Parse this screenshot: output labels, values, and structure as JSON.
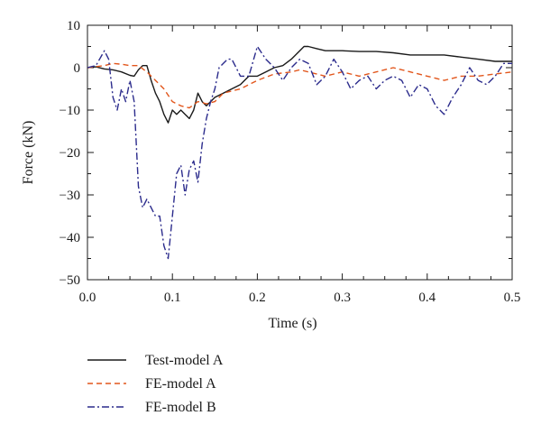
{
  "chart_data": {
    "type": "line",
    "xlabel": "Time (s)",
    "ylabel": "Force (kN)",
    "xlim": [
      0,
      0.5
    ],
    "ylim": [
      -50,
      10
    ],
    "xticks": [
      0.0,
      0.1,
      0.2,
      0.3,
      0.4,
      0.5
    ],
    "yticks": [
      10,
      0,
      -10,
      -20,
      -30,
      -40,
      -50
    ],
    "xtick_labels": [
      "0.0",
      "0.1",
      "0.2",
      "0.3",
      "0.4",
      "0.5"
    ],
    "ytick_labels": [
      "10",
      "0",
      "−10",
      "−20",
      "−30",
      "−40",
      "−50"
    ],
    "grid": false,
    "legend_position": "bottom-left, below plot",
    "series": [
      {
        "name": "Test-model A",
        "color": "#1a1a1a",
        "dash": "solid",
        "points": [
          [
            0,
            0
          ],
          [
            0.01,
            0.2
          ],
          [
            0.02,
            -0.3
          ],
          [
            0.03,
            -0.5
          ],
          [
            0.04,
            -1
          ],
          [
            0.05,
            -1.8
          ],
          [
            0.055,
            -2
          ],
          [
            0.06,
            -0.5
          ],
          [
            0.065,
            0.5
          ],
          [
            0.07,
            0.5
          ],
          [
            0.075,
            -3
          ],
          [
            0.08,
            -6
          ],
          [
            0.085,
            -8
          ],
          [
            0.09,
            -11
          ],
          [
            0.095,
            -13
          ],
          [
            0.1,
            -10
          ],
          [
            0.105,
            -11
          ],
          [
            0.11,
            -10
          ],
          [
            0.115,
            -11
          ],
          [
            0.12,
            -12
          ],
          [
            0.125,
            -10
          ],
          [
            0.13,
            -6
          ],
          [
            0.135,
            -8
          ],
          [
            0.14,
            -9
          ],
          [
            0.145,
            -8
          ],
          [
            0.15,
            -7
          ],
          [
            0.16,
            -6
          ],
          [
            0.17,
            -5
          ],
          [
            0.18,
            -4
          ],
          [
            0.19,
            -2
          ],
          [
            0.2,
            -2
          ],
          [
            0.21,
            -1
          ],
          [
            0.22,
            0
          ],
          [
            0.23,
            0.5
          ],
          [
            0.24,
            2
          ],
          [
            0.25,
            4
          ],
          [
            0.255,
            5
          ],
          [
            0.26,
            5
          ],
          [
            0.27,
            4.5
          ],
          [
            0.28,
            4
          ],
          [
            0.3,
            4
          ],
          [
            0.32,
            3.8
          ],
          [
            0.34,
            3.8
          ],
          [
            0.36,
            3.5
          ],
          [
            0.38,
            3
          ],
          [
            0.4,
            3
          ],
          [
            0.42,
            3
          ],
          [
            0.44,
            2.5
          ],
          [
            0.46,
            2
          ],
          [
            0.48,
            1.5
          ],
          [
            0.5,
            1.5
          ]
        ]
      },
      {
        "name": "FE-model A",
        "color": "#e2561c",
        "dash": "dashed",
        "points": [
          [
            0,
            0
          ],
          [
            0.02,
            0.5
          ],
          [
            0.03,
            1
          ],
          [
            0.04,
            0.8
          ],
          [
            0.05,
            0.5
          ],
          [
            0.06,
            0.5
          ],
          [
            0.07,
            -1
          ],
          [
            0.08,
            -3
          ],
          [
            0.09,
            -5
          ],
          [
            0.1,
            -8
          ],
          [
            0.11,
            -9
          ],
          [
            0.12,
            -9.5
          ],
          [
            0.13,
            -8
          ],
          [
            0.14,
            -8.5
          ],
          [
            0.15,
            -8
          ],
          [
            0.16,
            -6
          ],
          [
            0.18,
            -5
          ],
          [
            0.2,
            -3
          ],
          [
            0.22,
            -1.5
          ],
          [
            0.24,
            -1
          ],
          [
            0.25,
            -0.5
          ],
          [
            0.26,
            -1
          ],
          [
            0.28,
            -2
          ],
          [
            0.3,
            -1
          ],
          [
            0.32,
            -2
          ],
          [
            0.34,
            -1
          ],
          [
            0.36,
            0
          ],
          [
            0.38,
            -1
          ],
          [
            0.4,
            -2
          ],
          [
            0.42,
            -3
          ],
          [
            0.44,
            -2
          ],
          [
            0.46,
            -2
          ],
          [
            0.48,
            -1.5
          ],
          [
            0.5,
            -1
          ]
        ]
      },
      {
        "name": "FE-model B",
        "color": "#2b2b8c",
        "dash": "dashdot",
        "points": [
          [
            0,
            0
          ],
          [
            0.01,
            0.5
          ],
          [
            0.02,
            4
          ],
          [
            0.025,
            2
          ],
          [
            0.03,
            -7
          ],
          [
            0.035,
            -10
          ],
          [
            0.04,
            -5
          ],
          [
            0.045,
            -8
          ],
          [
            0.05,
            -3
          ],
          [
            0.055,
            -8
          ],
          [
            0.06,
            -28
          ],
          [
            0.065,
            -33
          ],
          [
            0.07,
            -31
          ],
          [
            0.075,
            -33
          ],
          [
            0.08,
            -35
          ],
          [
            0.085,
            -35
          ],
          [
            0.09,
            -42
          ],
          [
            0.095,
            -45
          ],
          [
            0.1,
            -35
          ],
          [
            0.105,
            -25
          ],
          [
            0.11,
            -23
          ],
          [
            0.115,
            -30
          ],
          [
            0.12,
            -24
          ],
          [
            0.125,
            -22
          ],
          [
            0.13,
            -27
          ],
          [
            0.135,
            -18
          ],
          [
            0.14,
            -12
          ],
          [
            0.145,
            -8
          ],
          [
            0.15,
            -5
          ],
          [
            0.155,
            0
          ],
          [
            0.16,
            1
          ],
          [
            0.165,
            2
          ],
          [
            0.17,
            2
          ],
          [
            0.175,
            0
          ],
          [
            0.18,
            -2
          ],
          [
            0.19,
            -2
          ],
          [
            0.2,
            5
          ],
          [
            0.21,
            2
          ],
          [
            0.22,
            0
          ],
          [
            0.23,
            -3
          ],
          [
            0.24,
            0
          ],
          [
            0.25,
            2
          ],
          [
            0.26,
            1
          ],
          [
            0.27,
            -4
          ],
          [
            0.28,
            -2
          ],
          [
            0.29,
            2
          ],
          [
            0.3,
            -1
          ],
          [
            0.31,
            -5
          ],
          [
            0.32,
            -3
          ],
          [
            0.33,
            -2
          ],
          [
            0.34,
            -5
          ],
          [
            0.35,
            -3
          ],
          [
            0.36,
            -2
          ],
          [
            0.37,
            -3
          ],
          [
            0.38,
            -7
          ],
          [
            0.39,
            -4
          ],
          [
            0.4,
            -5
          ],
          [
            0.41,
            -9
          ],
          [
            0.42,
            -11
          ],
          [
            0.43,
            -7
          ],
          [
            0.44,
            -4
          ],
          [
            0.45,
            0
          ],
          [
            0.46,
            -3
          ],
          [
            0.47,
            -4
          ],
          [
            0.48,
            -2
          ],
          [
            0.49,
            1
          ],
          [
            0.5,
            1
          ]
        ]
      }
    ]
  }
}
